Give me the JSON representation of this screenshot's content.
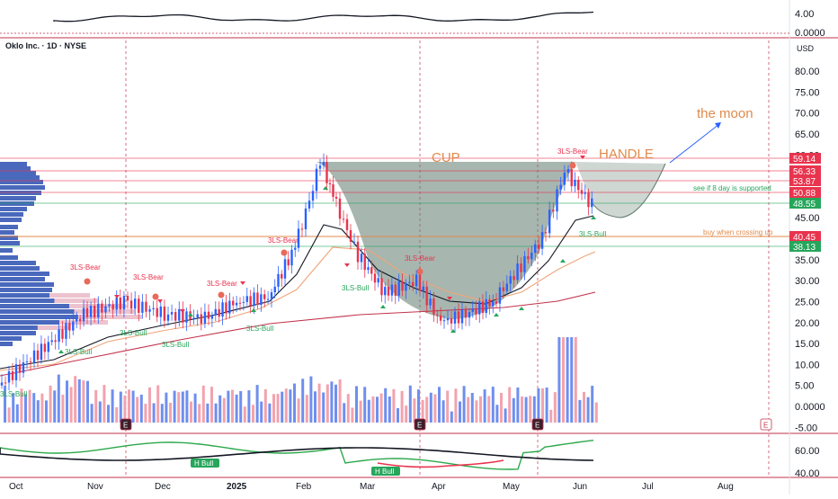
{
  "header": {
    "symbol_line": "Oklo Inc. · 1D · NYSE",
    "currency": "USD"
  },
  "top_panel": {
    "ticks": [
      "4.00",
      "0.0000"
    ]
  },
  "bottom_panel": {
    "ticks": [
      "60.00",
      "40.00"
    ]
  },
  "price_axis": {
    "ticks": [
      "80.00",
      "75.00",
      "70.00",
      "65.00",
      "60.00",
      "55.00",
      "45.00",
      "40.00",
      "35.00",
      "30.00",
      "25.00",
      "20.00",
      "15.00",
      "10.00",
      "5.00",
      "0.0000",
      "-5.00"
    ],
    "badges": [
      {
        "label": "59.14",
        "color": "#e8344e"
      },
      {
        "label": "56.33",
        "color": "#e8344e"
      },
      {
        "label": "53.87",
        "color": "#e8344e"
      },
      {
        "label": "50.88",
        "color": "#e8344e"
      },
      {
        "label": "48.55",
        "color": "#26a65b"
      },
      {
        "label": "40.45",
        "color": "#e8344e"
      },
      {
        "label": "38.13",
        "color": "#26a65b"
      }
    ]
  },
  "time_axis": {
    "labels": [
      "Oct",
      "Nov",
      "Dec",
      "2025",
      "Feb",
      "Mar",
      "Apr",
      "May",
      "Jun",
      "Jul",
      "Aug"
    ]
  },
  "annotations": {
    "cup": "CUP",
    "handle": "HANDLE",
    "moon": "the moon",
    "support_note": "see if 8 day is supported",
    "buy_note": "buy when crossing up"
  },
  "signals": {
    "bear": [
      "3LS-Bear",
      "3LS-Bear",
      "3LS-Bear",
      "3LS-Bear",
      "3LS-Bear",
      "3LS-Bear"
    ],
    "bull": [
      "3LS-Bull",
      "3LS-Bull",
      "3LS-Bull",
      "3LS-Bull",
      "3LS-Bull",
      "3LS-Bull",
      "3LS-Bull"
    ],
    "h_bull": [
      "H Bull",
      "H Bull"
    ],
    "earnings": [
      "E",
      "E",
      "E",
      "E",
      "E"
    ]
  },
  "colors": {
    "up": "#2962ff",
    "down": "#e8344e",
    "cup_fill": "#5f7a6e",
    "ema_fast": "#131722",
    "ema_slow": "#f0a57a",
    "ma_long": "#c2334c"
  },
  "chart_data": {
    "type": "candlestick",
    "price_unit": "USD",
    "ylim": [
      -5,
      85
    ],
    "annotated_levels": [
      59.14,
      56.33,
      53.87,
      50.88,
      48.55,
      40.45,
      38.13
    ],
    "closes_approx": [
      {
        "date": "2024-10",
        "value": 5
      },
      {
        "date": "2024-10-15",
        "value": 12
      },
      {
        "date": "2024-10-29",
        "value": 22
      },
      {
        "date": "2024-11-12",
        "value": 25
      },
      {
        "date": "2024-11-26",
        "value": 22
      },
      {
        "date": "2024-12-10",
        "value": 21
      },
      {
        "date": "2024-12-24",
        "value": 25
      },
      {
        "date": "2025-01-07",
        "value": 26
      },
      {
        "date": "2025-01-21",
        "value": 38
      },
      {
        "date": "2025-02-04",
        "value": 52
      },
      {
        "date": "2025-02-11",
        "value": 59
      },
      {
        "date": "2025-02-18",
        "value": 50
      },
      {
        "date": "2025-03-04",
        "value": 36
      },
      {
        "date": "2025-03-18",
        "value": 27
      },
      {
        "date": "2025-03-25",
        "value": 30
      },
      {
        "date": "2025-04-08",
        "value": 20
      },
      {
        "date": "2025-04-22",
        "value": 22
      },
      {
        "date": "2025-05-06",
        "value": 25
      },
      {
        "date": "2025-05-20",
        "value": 40
      },
      {
        "date": "2025-05-27",
        "value": 56
      },
      {
        "date": "2025-06-03",
        "value": 48
      }
    ]
  }
}
